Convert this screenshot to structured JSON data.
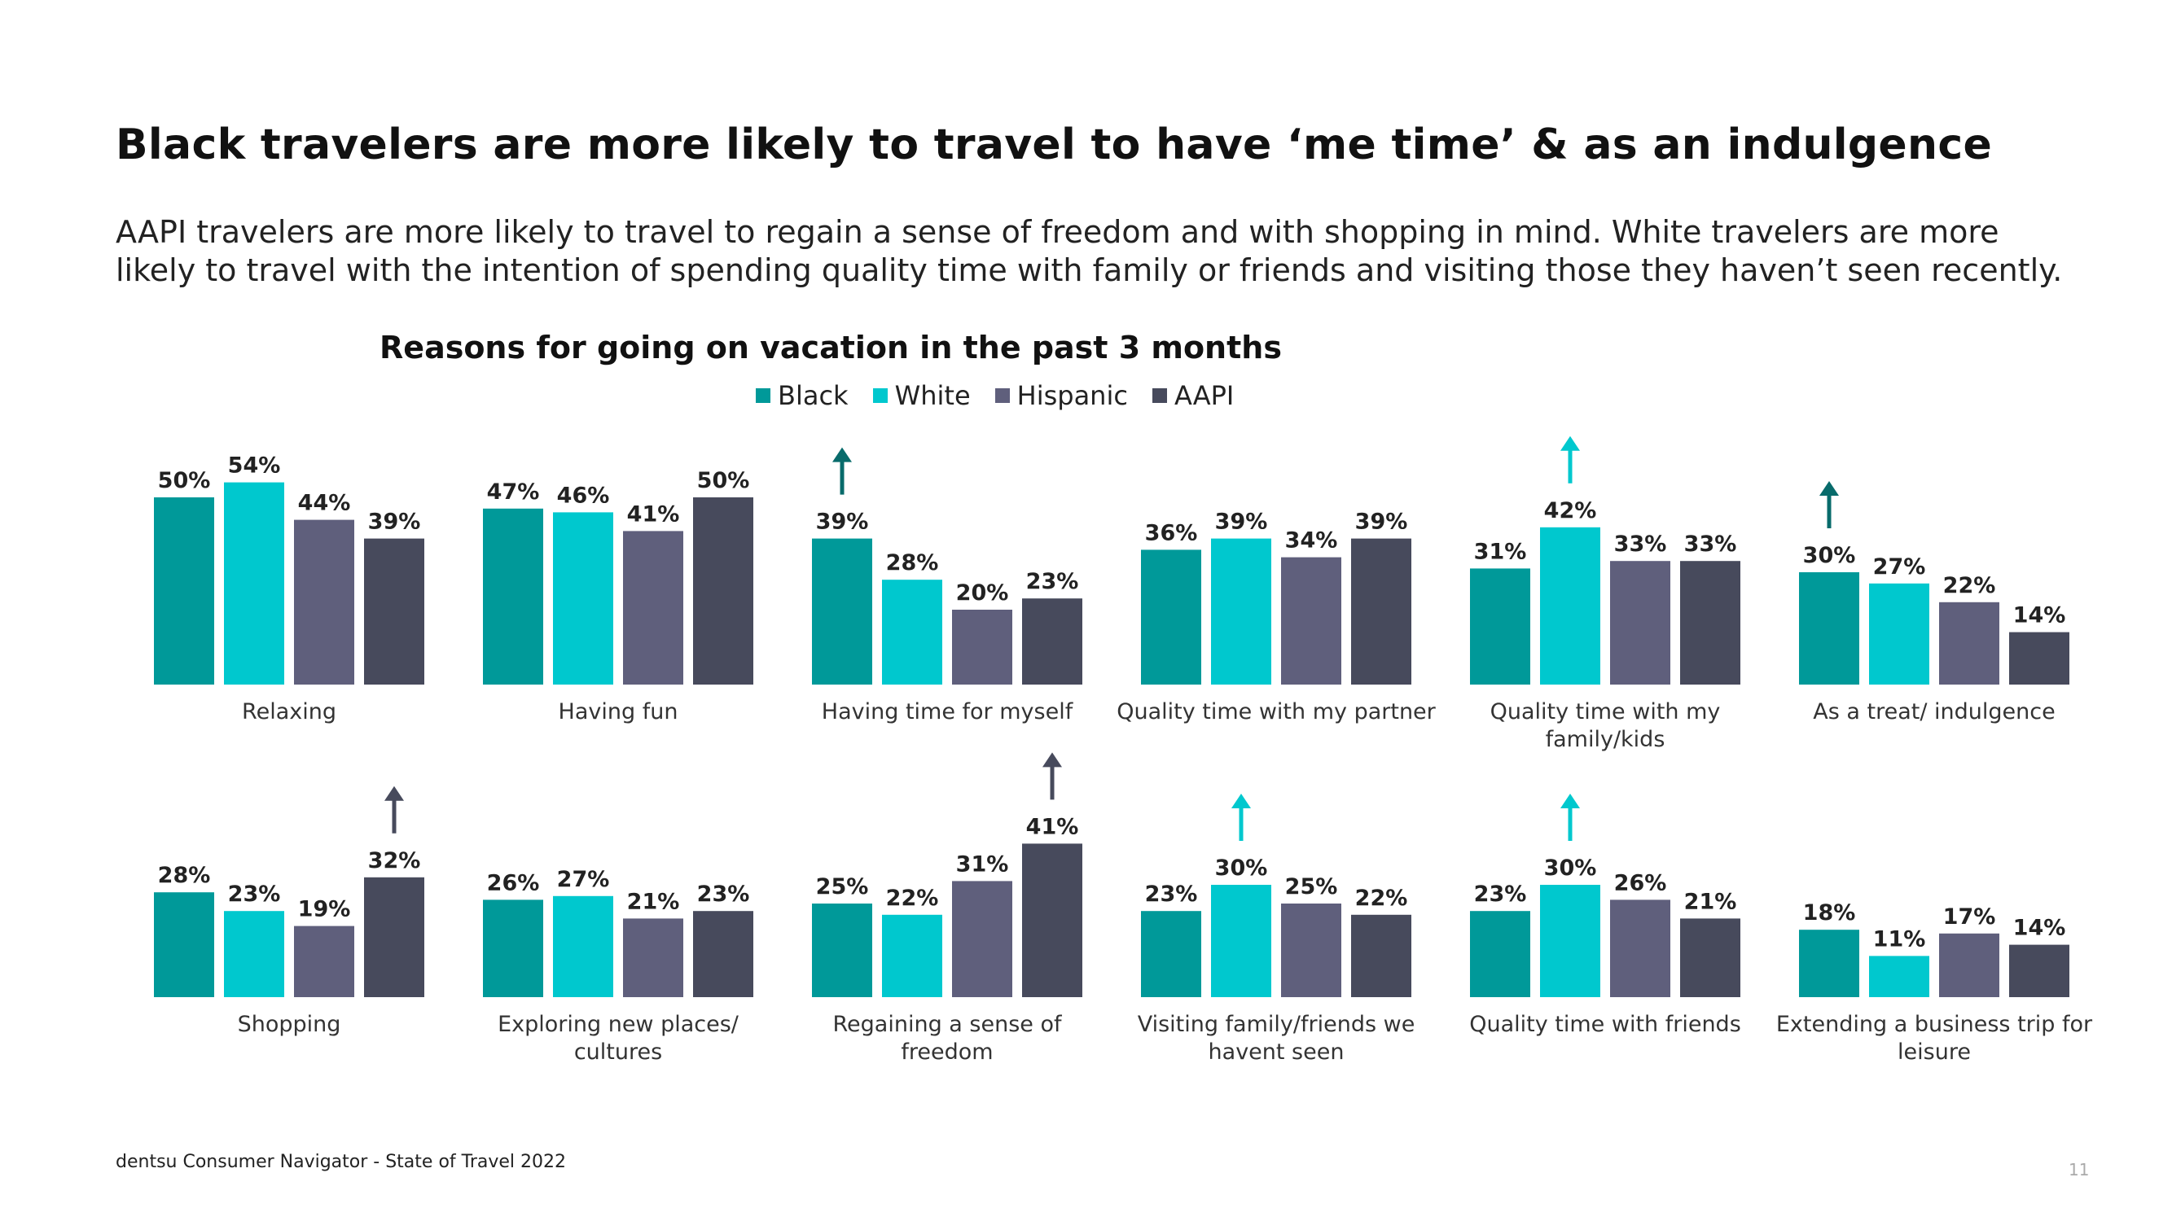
{
  "headline": "Black travelers are more likely to travel to have ‘me time’ & as an indulgence",
  "subtitle": "AAPI travelers are more likely to travel to regain a sense of freedom and with shopping in mind. White travelers are more likely to travel with the intention of spending quality time with family or friends and visiting those they haven’t seen recently.",
  "footer": "dentsu Consumer Navigator - State of Travel 2022",
  "page_number": "11",
  "chart_data": {
    "type": "bar",
    "title": "Reasons for going on vacation in the past 3 months",
    "legend_position": "top-center",
    "grid": false,
    "unit": "%",
    "ylim": [
      0,
      54
    ],
    "series": [
      {
        "name": "Black",
        "color": "#009999"
      },
      {
        "name": "White",
        "color": "#00C8CE"
      },
      {
        "name": "Hispanic",
        "color": "#5F5F7C"
      },
      {
        "name": "AAPI",
        "color": "#474A5C"
      }
    ],
    "panels": [
      {
        "category": [
          "Relaxing"
        ],
        "values": [
          50,
          54,
          44,
          39
        ],
        "highlight": null
      },
      {
        "category": [
          "Having fun"
        ],
        "values": [
          47,
          46,
          41,
          50
        ],
        "highlight": null
      },
      {
        "category": [
          "Having time for myself"
        ],
        "values": [
          39,
          28,
          20,
          23
        ],
        "highlight": "Black"
      },
      {
        "category": [
          "Quality time with my partner"
        ],
        "values": [
          36,
          39,
          34,
          39
        ],
        "highlight": null
      },
      {
        "category": [
          "Quality time with my",
          "family/kids"
        ],
        "values": [
          31,
          42,
          33,
          33
        ],
        "highlight": "White"
      },
      {
        "category": [
          "As a treat/ indulgence"
        ],
        "values": [
          30,
          27,
          22,
          14
        ],
        "highlight": "Black"
      },
      {
        "category": [
          "Shopping"
        ],
        "values": [
          28,
          23,
          19,
          32
        ],
        "highlight": "AAPI"
      },
      {
        "category": [
          "Exploring new places/",
          "cultures"
        ],
        "values": [
          26,
          27,
          21,
          23
        ],
        "highlight": null
      },
      {
        "category": [
          "Regaining a sense of",
          "freedom"
        ],
        "values": [
          25,
          22,
          31,
          41
        ],
        "highlight": "AAPI"
      },
      {
        "category": [
          "Visiting family/friends we",
          "havent seen"
        ],
        "values": [
          23,
          30,
          25,
          22
        ],
        "highlight": "White"
      },
      {
        "category": [
          "Quality time with friends"
        ],
        "values": [
          23,
          30,
          26,
          21
        ],
        "highlight": "White"
      },
      {
        "category": [
          "Extending a business trip for",
          "leisure"
        ],
        "values": [
          18,
          11,
          17,
          14
        ],
        "highlight": null
      }
    ]
  }
}
